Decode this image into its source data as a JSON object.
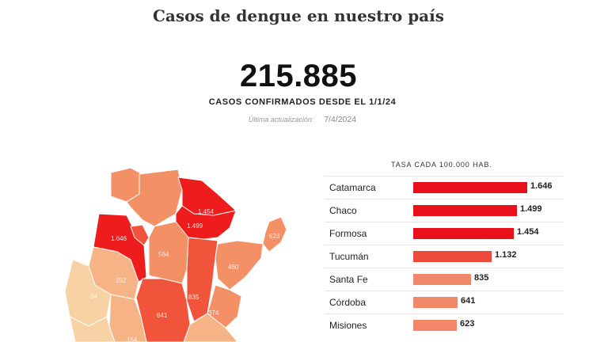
{
  "title": "Casos de dengue en nuestro país",
  "total_cases": "215.885",
  "total_caption": "CASOS CONFIRMADOS DESDE EL 1/1/24",
  "update_label": "Última actualización:",
  "update_date": "7/4/2024",
  "rate_header": "TASA CADA 100.000 HAB.",
  "colors": {
    "bar_level_1": "#e8101a",
    "bar_level_2": "#ee4a3c",
    "bar_level_3": "#f2876a",
    "map_high": "#ee1c1c",
    "map_mid_high": "#f0553c",
    "map_mid": "#f39066",
    "map_low": "#f6b385",
    "map_lowest": "#f8d2a4"
  },
  "map_labels": {
    "catamarca": "1.646",
    "chaco": "1.499",
    "formosa": "1.454",
    "santa_fe": "835",
    "cordoba": "641",
    "misiones": "623",
    "santiago": "564",
    "corrientes": "460",
    "entre_rios": "374",
    "la_rioja": "252",
    "san_juan": "64",
    "san_luis": "154"
  },
  "chart_data": {
    "type": "bar",
    "orientation": "horizontal",
    "title": "TASA CADA 100.000 HAB.",
    "categories": [
      "Catamarca",
      "Chaco",
      "Formosa",
      "Tucumán",
      "Santa Fe",
      "Córdoba",
      "Misiones"
    ],
    "values": [
      1646,
      1499,
      1454,
      1132,
      835,
      641,
      623
    ],
    "value_labels": [
      "1.646",
      "1.499",
      "1.454",
      "1.132",
      "835",
      "641",
      "623"
    ],
    "bar_colors": [
      "#e8101a",
      "#e8101a",
      "#e8101a",
      "#ee4a3c",
      "#f2876a",
      "#f2876a",
      "#f2876a"
    ],
    "xlim": [
      0,
      1646
    ],
    "grid": false,
    "legend": "none"
  }
}
